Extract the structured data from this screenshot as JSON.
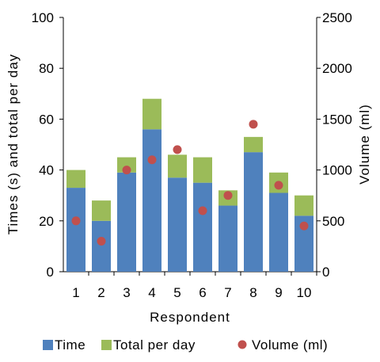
{
  "chart_data": {
    "type": "bar",
    "stacked": true,
    "categories": [
      "1",
      "2",
      "3",
      "4",
      "5",
      "6",
      "7",
      "8",
      "9",
      "10"
    ],
    "xlabel": "Respondent",
    "ylabel": "Times (s) and total per day",
    "y2label": "Volume (ml)",
    "ylim": [
      0,
      100
    ],
    "y2lim": [
      0,
      2500
    ],
    "yticks": [
      0,
      20,
      40,
      60,
      80,
      100
    ],
    "y2ticks": [
      0,
      500,
      1000,
      1500,
      2000,
      2500
    ],
    "grid": false,
    "legend_position": "bottom",
    "series": [
      {
        "name": "Time",
        "type": "bar",
        "axis": "left",
        "color": "#4f81bd",
        "values": [
          33,
          20,
          39,
          56,
          37,
          35,
          26,
          47,
          31,
          22
        ]
      },
      {
        "name": "Total per day",
        "type": "bar",
        "axis": "left",
        "color": "#9bbb59",
        "values": [
          7,
          8,
          6,
          12,
          9,
          10,
          6,
          6,
          8,
          8
        ]
      },
      {
        "name": "Volume (ml)",
        "type": "scatter",
        "axis": "right",
        "color": "#c0504d",
        "values": [
          500,
          300,
          1000,
          1100,
          1200,
          600,
          750,
          1450,
          850,
          450
        ]
      }
    ]
  }
}
